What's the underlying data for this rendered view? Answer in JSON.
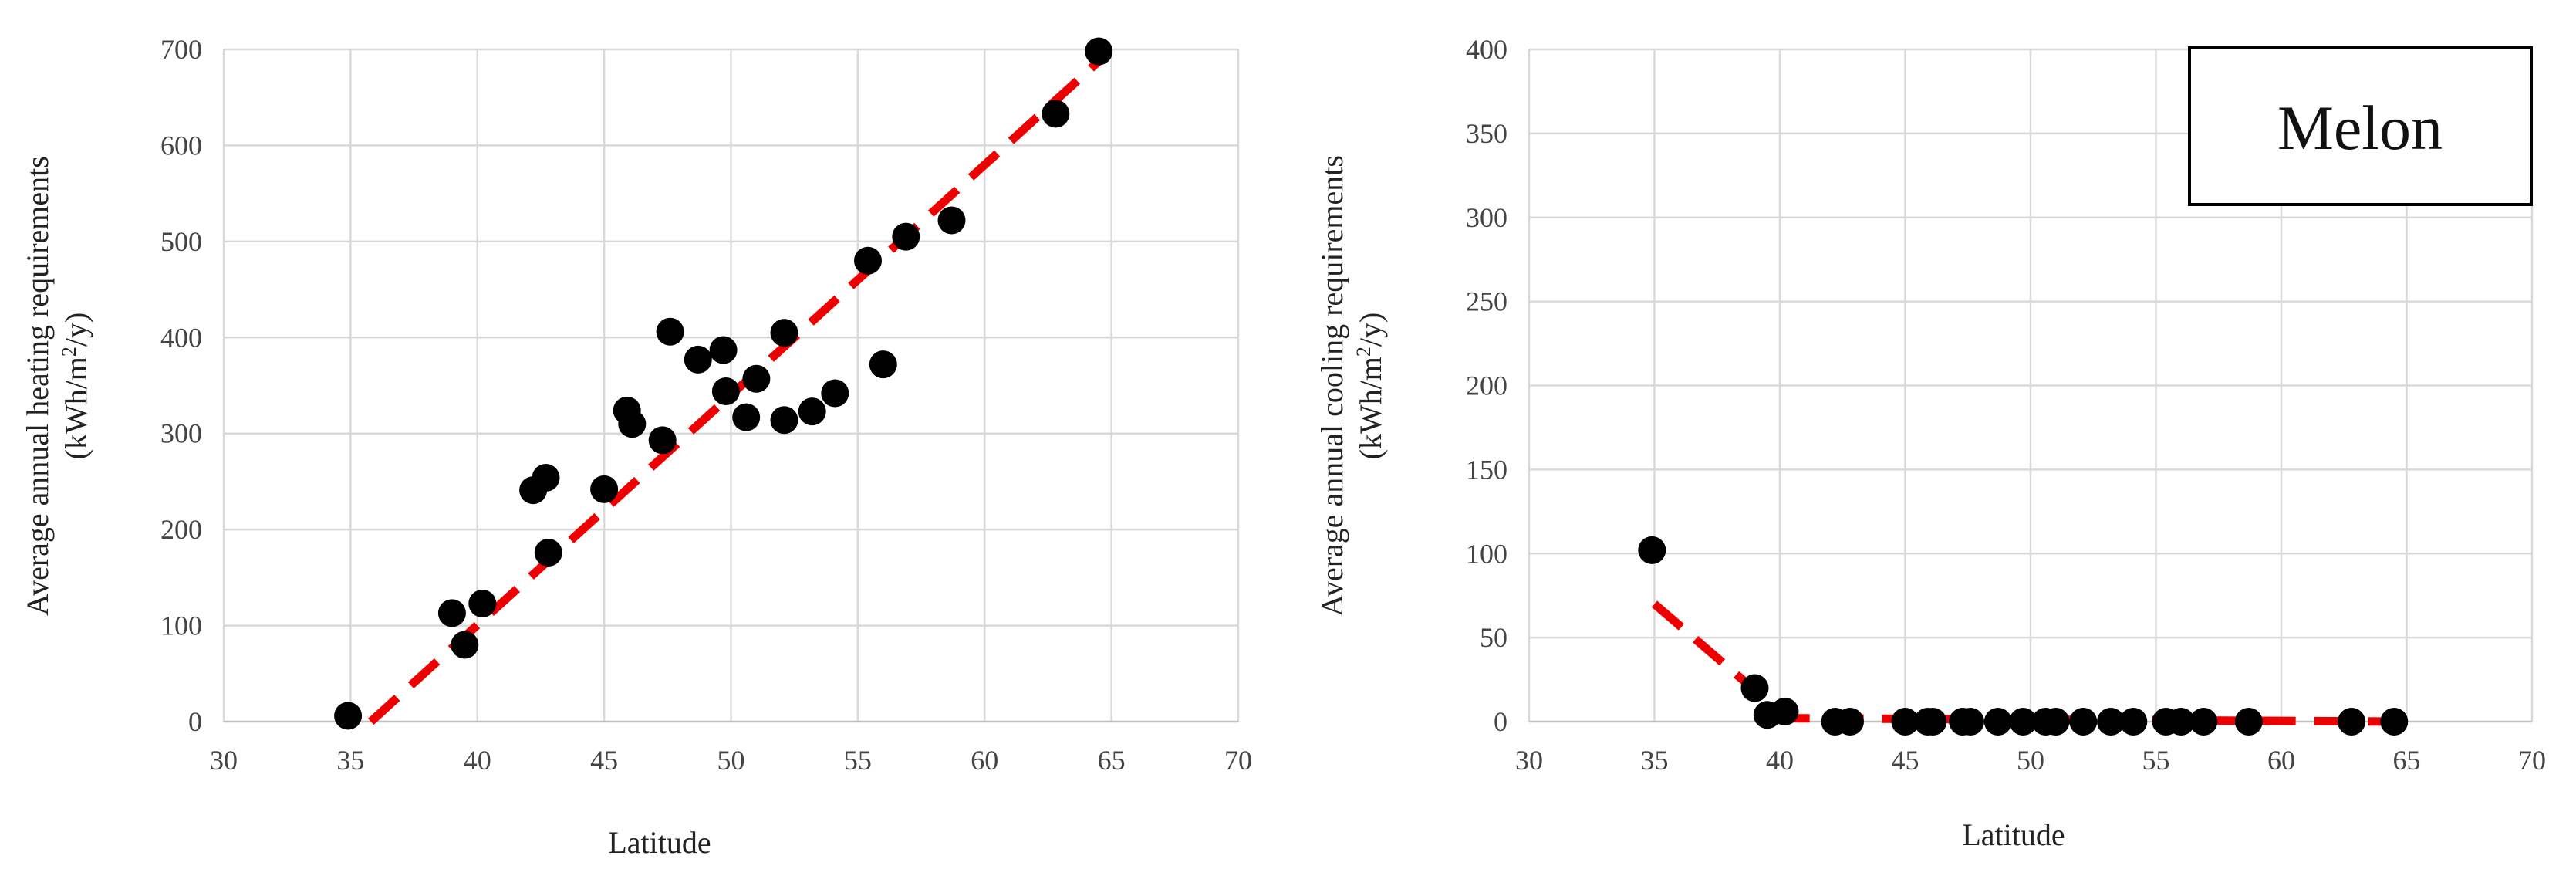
{
  "chart_data": [
    {
      "type": "scatter",
      "title": "",
      "xlabel": "Latitude",
      "ylabel_line1": "Average annual heating requirements",
      "ylabel_line2_prefix": "(kWh/m",
      "ylabel_line2_sup": "2",
      "ylabel_line2_suffix": "/y)",
      "xlim": [
        30,
        70
      ],
      "ylim": [
        0,
        700
      ],
      "xticks": [
        "30",
        "35",
        "40",
        "45",
        "50",
        "55",
        "60",
        "65",
        "70"
      ],
      "yticks": [
        "0",
        "100",
        "200",
        "300",
        "400",
        "500",
        "600",
        "700"
      ],
      "grid": true,
      "series": [
        {
          "color": "#000000",
          "points": [
            {
              "x": 34.9,
              "y": 6
            },
            {
              "x": 39.0,
              "y": 113
            },
            {
              "x": 39.5,
              "y": 80
            },
            {
              "x": 40.2,
              "y": 123
            },
            {
              "x": 42.2,
              "y": 241
            },
            {
              "x": 42.7,
              "y": 254
            },
            {
              "x": 42.8,
              "y": 176
            },
            {
              "x": 45.0,
              "y": 242
            },
            {
              "x": 45.9,
              "y": 324
            },
            {
              "x": 46.1,
              "y": 310
            },
            {
              "x": 47.3,
              "y": 293
            },
            {
              "x": 47.6,
              "y": 406
            },
            {
              "x": 48.7,
              "y": 377
            },
            {
              "x": 49.7,
              "y": 387
            },
            {
              "x": 49.8,
              "y": 344
            },
            {
              "x": 50.6,
              "y": 317
            },
            {
              "x": 51.0,
              "y": 357
            },
            {
              "x": 52.1,
              "y": 405
            },
            {
              "x": 52.1,
              "y": 314
            },
            {
              "x": 53.2,
              "y": 323
            },
            {
              "x": 54.1,
              "y": 342
            },
            {
              "x": 55.4,
              "y": 480
            },
            {
              "x": 56.0,
              "y": 372
            },
            {
              "x": 56.9,
              "y": 505
            },
            {
              "x": 58.7,
              "y": 522
            },
            {
              "x": 62.8,
              "y": 633
            },
            {
              "x": 64.5,
              "y": 698
            }
          ]
        }
      ],
      "trendline": {
        "type": "linear",
        "color": "#ee0000",
        "style": "dashed",
        "x": [
          35.8,
          64.6
        ],
        "y": [
          0,
          690
        ]
      }
    },
    {
      "type": "scatter",
      "title": "",
      "legend_label": "Melon",
      "legend_position": "top-right",
      "xlabel": "Latitude",
      "ylabel_line1": "Average annual cooling requirements",
      "ylabel_line2_prefix": "(kWh/m",
      "ylabel_line2_sup": "2",
      "ylabel_line2_suffix": "/y)",
      "xlim": [
        30,
        70
      ],
      "ylim": [
        0,
        400
      ],
      "xticks": [
        "30",
        "35",
        "40",
        "45",
        "50",
        "55",
        "60",
        "65",
        "70"
      ],
      "yticks": [
        "0",
        "50",
        "100",
        "150",
        "200",
        "250",
        "300",
        "350",
        "400"
      ],
      "grid": true,
      "series": [
        {
          "color": "#000000",
          "points": [
            {
              "x": 34.9,
              "y": 102
            },
            {
              "x": 39.0,
              "y": 20
            },
            {
              "x": 39.5,
              "y": 4
            },
            {
              "x": 40.2,
              "y": 6
            },
            {
              "x": 42.2,
              "y": 0
            },
            {
              "x": 42.8,
              "y": 0
            },
            {
              "x": 45.0,
              "y": 0
            },
            {
              "x": 45.9,
              "y": 0
            },
            {
              "x": 46.1,
              "y": 0
            },
            {
              "x": 47.3,
              "y": 0
            },
            {
              "x": 47.6,
              "y": 0
            },
            {
              "x": 48.7,
              "y": 0
            },
            {
              "x": 49.7,
              "y": 0
            },
            {
              "x": 50.6,
              "y": 0
            },
            {
              "x": 51.0,
              "y": 0
            },
            {
              "x": 52.1,
              "y": 0
            },
            {
              "x": 53.2,
              "y": 0
            },
            {
              "x": 54.1,
              "y": 0
            },
            {
              "x": 55.4,
              "y": 0
            },
            {
              "x": 56.0,
              "y": 0
            },
            {
              "x": 56.9,
              "y": 0
            },
            {
              "x": 58.7,
              "y": 0
            },
            {
              "x": 62.8,
              "y": 0
            },
            {
              "x": 64.5,
              "y": 0
            }
          ]
        }
      ],
      "trendline": {
        "type": "piecewise",
        "color": "#ee0000",
        "style": "dashed",
        "x": [
          35.0,
          40.3,
          64.6
        ],
        "y": [
          70,
          2,
          0
        ]
      }
    }
  ]
}
